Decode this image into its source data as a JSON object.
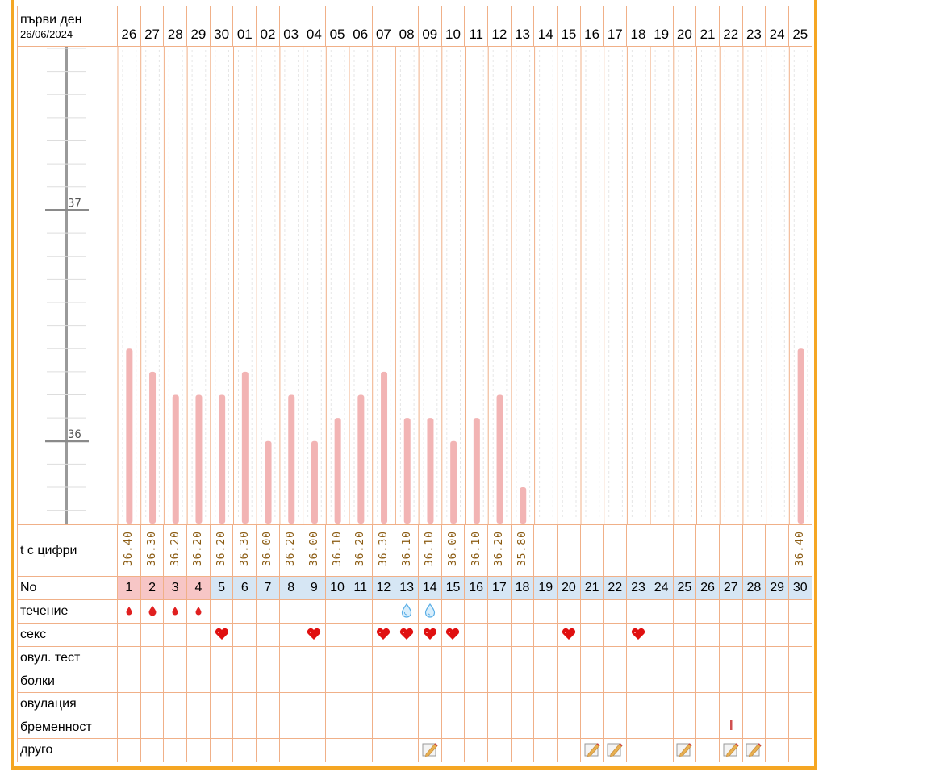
{
  "header": {
    "first_day_label": "първи ден",
    "first_day_date": "26/06/2024"
  },
  "days": [
    "26",
    "27",
    "28",
    "29",
    "30",
    "01",
    "02",
    "03",
    "04",
    "05",
    "06",
    "07",
    "08",
    "09",
    "10",
    "11",
    "12",
    "13",
    "14",
    "15",
    "16",
    "17",
    "18",
    "19",
    "20",
    "21",
    "22",
    "23",
    "24",
    "25"
  ],
  "rows": {
    "temp_label": "t с цифри",
    "no_label": "No",
    "flow_label": "течение",
    "sex_label": "секс",
    "ovul_test_label": "овул. тест",
    "pain_label": "болки",
    "ovulation_label": "овулация",
    "pregnancy_label": "бременност",
    "other_label": "друго"
  },
  "cycle_numbers": [
    "1",
    "2",
    "3",
    "4",
    "5",
    "6",
    "7",
    "8",
    "9",
    "10",
    "11",
    "12",
    "13",
    "14",
    "15",
    "16",
    "17",
    "18",
    "19",
    "20",
    "21",
    "22",
    "23",
    "24",
    "25",
    "26",
    "27",
    "28",
    "29",
    "30"
  ],
  "period_days": 4,
  "temperature_labels": [
    "36.40",
    "36.30",
    "36.20",
    "36.20",
    "36.20",
    "36.30",
    "36.00",
    "36.20",
    "36.00",
    "36.10",
    "36.20",
    "36.30",
    "36.10",
    "36.10",
    "36.00",
    "36.10",
    "36.20",
    "35.80",
    "",
    "",
    "",
    "",
    "",
    "",
    "",
    "",
    "",
    "",
    "",
    "36.40"
  ],
  "flow": [
    "blood",
    "blood-heavy",
    "blood",
    "blood",
    "",
    "",
    "",
    "",
    "",
    "",
    "",
    "",
    "water",
    "water",
    "",
    "",
    "",
    "",
    "",
    "",
    "",
    "",
    "",
    "",
    "",
    "",
    "",
    "",
    "",
    ""
  ],
  "sex": [
    "",
    "",
    "",
    "",
    "heart",
    "",
    "",
    "",
    "heart",
    "",
    "",
    "heart",
    "heart",
    "heart",
    "heart",
    "",
    "",
    "",
    "",
    "heart",
    "",
    "",
    "heart",
    "",
    "",
    "",
    "",
    "",
    "",
    ""
  ],
  "pregnancy": [
    "",
    "",
    "",
    "",
    "",
    "",
    "",
    "",
    "",
    "",
    "",
    "",
    "",
    "",
    "",
    "",
    "",
    "",
    "",
    "",
    "",
    "",
    "",
    "",
    "",
    "",
    "mark",
    "",
    "",
    ""
  ],
  "other": [
    "",
    "",
    "",
    "",
    "",
    "",
    "",
    "",
    "",
    "",
    "",
    "",
    "",
    "note",
    "",
    "",
    "",
    "",
    "",
    "",
    "note",
    "note",
    "",
    "",
    "note",
    "",
    "note",
    "note",
    "",
    ""
  ],
  "colors": {
    "frame": "#f5a623",
    "grid_line": "#f0b088",
    "bar": "#f2b4b4",
    "period_bg": "#f7c6c6",
    "normal_bg": "#d6e6f4",
    "blood": "#e02020",
    "water": "#5aaee6",
    "heart": "#e01010",
    "pencil": "#c89040"
  },
  "icons": {
    "blood": "blood-drop-icon",
    "water": "water-drop-icon",
    "heart": "heart-icon",
    "note": "pencil-note-icon",
    "mark": "pregnancy-mark-icon"
  },
  "chart_data": {
    "type": "bar",
    "categories": [
      "26",
      "27",
      "28",
      "29",
      "30",
      "01",
      "02",
      "03",
      "04",
      "05",
      "06",
      "07",
      "08",
      "09",
      "10",
      "11",
      "12",
      "13",
      "14",
      "15",
      "16",
      "17",
      "18",
      "19",
      "20",
      "21",
      "22",
      "23",
      "24",
      "25"
    ],
    "values": [
      36.4,
      36.3,
      36.2,
      36.2,
      36.2,
      36.3,
      36.0,
      36.2,
      36.0,
      36.1,
      36.2,
      36.3,
      36.1,
      36.1,
      36.0,
      36.1,
      36.2,
      35.8,
      null,
      null,
      null,
      null,
      null,
      null,
      null,
      null,
      null,
      null,
      null,
      36.4
    ],
    "ylim": [
      35.65,
      37.7
    ],
    "yticks": [
      "36",
      "37"
    ],
    "xlabel": "",
    "ylabel": "",
    "title": ""
  }
}
